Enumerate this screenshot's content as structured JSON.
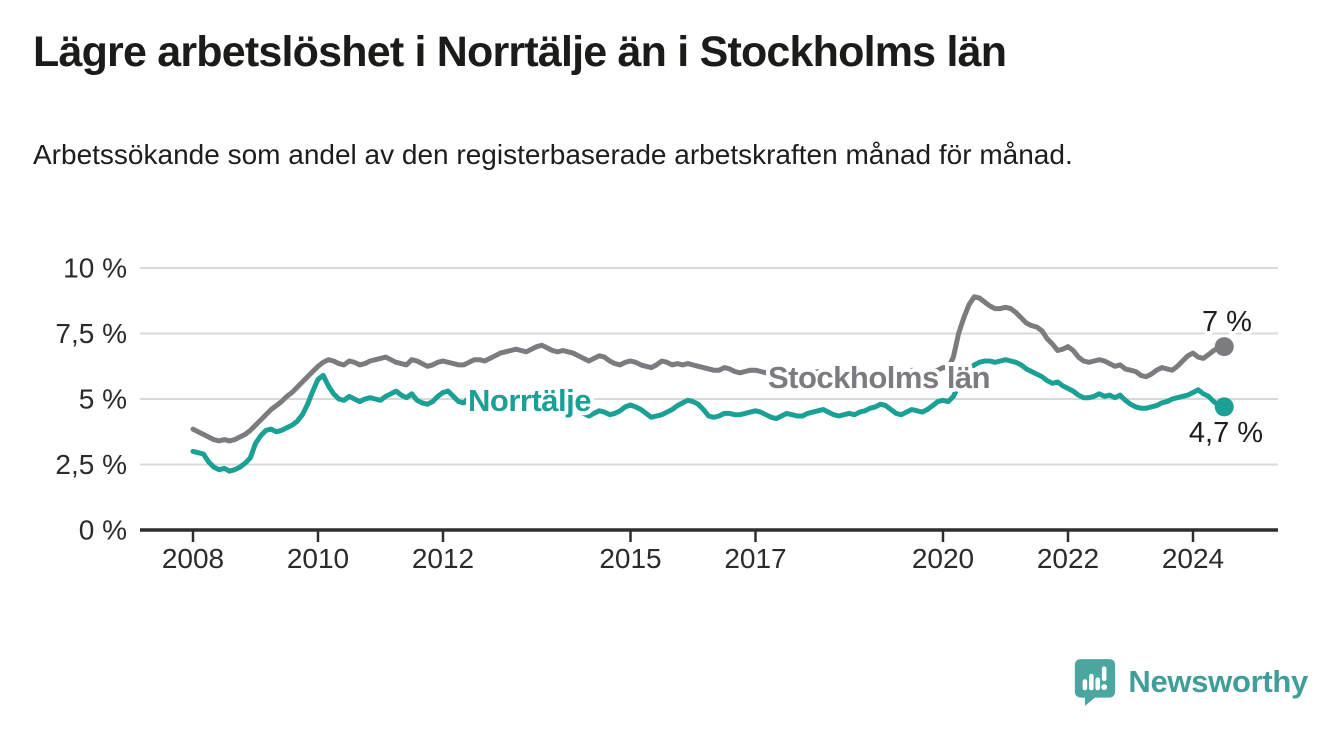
{
  "header": {
    "title": "Lägre arbetslöshet i Norrtälje än i Stockholms län",
    "subtitle": "Arbetssökande som andel av den registerbaserade arbetskraften månad för månad."
  },
  "chart_data": {
    "type": "line",
    "title": "Lägre arbetslöshet i Norrtälje än i Stockholms län",
    "subtitle": "Arbetssökande som andel av den registerbaserade arbetskraften månad för månad.",
    "ylim": [
      0,
      10
    ],
    "grid": true,
    "legend_position": "inline-labels",
    "y_ticks": [
      {
        "label": "0 %",
        "value": 0
      },
      {
        "label": "2,5 %",
        "value": 2.5
      },
      {
        "label": "5 %",
        "value": 5
      },
      {
        "label": "7,5 %",
        "value": 7.5
      },
      {
        "label": "10 %",
        "value": 10
      }
    ],
    "x_ticks": [
      {
        "label": "2008",
        "value": 2008
      },
      {
        "label": "2010",
        "value": 2010
      },
      {
        "label": "2012",
        "value": 2012
      },
      {
        "label": "2015",
        "value": 2015
      },
      {
        "label": "2017",
        "value": 2017
      },
      {
        "label": "2020",
        "value": 2020
      },
      {
        "label": "2022",
        "value": 2022
      },
      {
        "label": "2024",
        "value": 2024
      }
    ],
    "x_start_year": 2008,
    "frequency": "monthly",
    "series": [
      {
        "id": "stockholms-lan",
        "name": "Stockholms län",
        "color": "#7C7B80",
        "end_label": "7 %",
        "values": [
          3.85,
          3.75,
          3.65,
          3.55,
          3.45,
          3.4,
          3.45,
          3.4,
          3.45,
          3.55,
          3.65,
          3.8,
          4.0,
          4.2,
          4.4,
          4.6,
          4.75,
          4.9,
          5.1,
          5.25,
          5.45,
          5.65,
          5.85,
          6.05,
          6.25,
          6.4,
          6.5,
          6.45,
          6.35,
          6.3,
          6.45,
          6.4,
          6.3,
          6.35,
          6.45,
          6.5,
          6.55,
          6.6,
          6.5,
          6.4,
          6.35,
          6.3,
          6.5,
          6.45,
          6.35,
          6.25,
          6.3,
          6.4,
          6.45,
          6.4,
          6.35,
          6.3,
          6.3,
          6.4,
          6.5,
          6.5,
          6.45,
          6.55,
          6.65,
          6.75,
          6.8,
          6.85,
          6.9,
          6.85,
          6.8,
          6.9,
          7.0,
          7.05,
          6.95,
          6.85,
          6.8,
          6.85,
          6.8,
          6.75,
          6.65,
          6.55,
          6.45,
          6.55,
          6.65,
          6.6,
          6.45,
          6.35,
          6.3,
          6.4,
          6.45,
          6.4,
          6.3,
          6.25,
          6.2,
          6.3,
          6.45,
          6.4,
          6.3,
          6.35,
          6.3,
          6.35,
          6.3,
          6.25,
          6.2,
          6.15,
          6.1,
          6.1,
          6.2,
          6.15,
          6.05,
          6.0,
          6.05,
          6.1,
          6.1,
          6.05,
          6.0,
          5.95,
          5.9,
          6.0,
          6.1,
          6.05,
          6.0,
          5.95,
          5.95,
          6.0,
          6.05,
          6.0,
          5.95,
          5.85,
          5.8,
          5.9,
          6.0,
          5.95,
          5.9,
          5.85,
          5.9,
          5.95,
          6.0,
          6.0,
          5.95,
          5.9,
          5.9,
          6.0,
          6.1,
          6.05,
          6.0,
          6.0,
          6.05,
          6.1,
          6.2,
          6.2,
          6.6,
          7.5,
          8.1,
          8.6,
          8.9,
          8.85,
          8.7,
          8.55,
          8.45,
          8.45,
          8.5,
          8.45,
          8.3,
          8.1,
          7.9,
          7.8,
          7.75,
          7.6,
          7.3,
          7.1,
          6.85,
          6.9,
          7.0,
          6.85,
          6.6,
          6.45,
          6.4,
          6.45,
          6.5,
          6.45,
          6.35,
          6.25,
          6.3,
          6.15,
          6.1,
          6.05,
          5.9,
          5.85,
          5.95,
          6.1,
          6.2,
          6.15,
          6.1,
          6.25,
          6.45,
          6.65,
          6.75,
          6.6,
          6.55,
          6.7,
          6.85,
          6.95,
          7.0
        ]
      },
      {
        "id": "norrtalje",
        "name": "Norrtälje",
        "color": "#1AA094",
        "end_label": "4,7 %",
        "values": [
          3.0,
          2.95,
          2.9,
          2.6,
          2.4,
          2.3,
          2.35,
          2.25,
          2.3,
          2.4,
          2.55,
          2.75,
          3.3,
          3.6,
          3.8,
          3.85,
          3.75,
          3.8,
          3.9,
          4.0,
          4.15,
          4.4,
          4.8,
          5.3,
          5.75,
          5.9,
          5.5,
          5.2,
          5.0,
          4.95,
          5.1,
          5.0,
          4.9,
          5.0,
          5.05,
          5.0,
          4.95,
          5.1,
          5.2,
          5.3,
          5.15,
          5.05,
          5.2,
          4.95,
          4.85,
          4.8,
          4.9,
          5.1,
          5.25,
          5.3,
          5.1,
          4.9,
          4.85,
          5.05,
          5.1,
          4.95,
          4.9,
          5.0,
          5.1,
          5.15,
          5.1,
          5.05,
          4.95,
          4.85,
          4.8,
          4.9,
          4.95,
          4.85,
          4.7,
          4.6,
          4.55,
          4.65,
          4.7,
          4.65,
          4.55,
          4.45,
          4.35,
          4.45,
          4.55,
          4.5,
          4.4,
          4.45,
          4.55,
          4.7,
          4.77,
          4.7,
          4.6,
          4.45,
          4.3,
          4.35,
          4.4,
          4.5,
          4.6,
          4.75,
          4.85,
          4.95,
          4.9,
          4.8,
          4.6,
          4.35,
          4.3,
          4.35,
          4.45,
          4.45,
          4.4,
          4.4,
          4.45,
          4.5,
          4.55,
          4.5,
          4.4,
          4.3,
          4.25,
          4.35,
          4.45,
          4.4,
          4.35,
          4.35,
          4.45,
          4.5,
          4.55,
          4.6,
          4.5,
          4.4,
          4.35,
          4.4,
          4.45,
          4.4,
          4.5,
          4.55,
          4.65,
          4.7,
          4.8,
          4.75,
          4.6,
          4.45,
          4.4,
          4.5,
          4.6,
          4.55,
          4.5,
          4.6,
          4.75,
          4.9,
          4.95,
          4.9,
          5.1,
          5.5,
          5.8,
          6.1,
          6.3,
          6.4,
          6.45,
          6.45,
          6.4,
          6.45,
          6.5,
          6.45,
          6.4,
          6.3,
          6.15,
          6.05,
          5.95,
          5.85,
          5.7,
          5.6,
          5.65,
          5.5,
          5.4,
          5.3,
          5.15,
          5.05,
          5.05,
          5.1,
          5.2,
          5.1,
          5.15,
          5.05,
          5.15,
          4.95,
          4.8,
          4.7,
          4.65,
          4.65,
          4.7,
          4.75,
          4.85,
          4.9,
          5.0,
          5.05,
          5.1,
          5.15,
          5.25,
          5.35,
          5.2,
          5.1,
          4.9,
          4.75,
          4.7
        ]
      }
    ],
    "colors": {
      "grid": "#D9D9D9",
      "axis": "#2E2E2E",
      "tick_text": "#2B2B2B",
      "annotation_text": "#1D1D1D"
    }
  },
  "footer": {
    "brand": "Newsworthy",
    "brand_color": "#3F9E99",
    "brand_icon": "chart-speech-bubble-icon",
    "brand_icon_color": "#4BA6A1"
  }
}
